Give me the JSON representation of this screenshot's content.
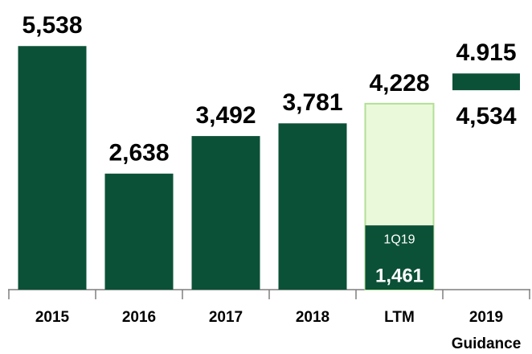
{
  "chart_data": {
    "type": "bar",
    "categories": [
      "2015",
      "2016",
      "2017",
      "2018",
      "LTM",
      "2019 Guidance"
    ],
    "values": [
      5538,
      2638,
      3492,
      3781,
      4228,
      null
    ],
    "value_labels": [
      "5,538",
      "2,638",
      "3,492",
      "3,781",
      "4,228",
      null
    ],
    "colors": [
      "#0b5137",
      "#0b5137",
      "#0b5137",
      "#0b5137",
      "#eaf9da",
      "#0b5137"
    ],
    "outline_colors": [
      null,
      null,
      null,
      null,
      "#b3df96",
      null
    ],
    "inner_values": [
      null,
      null,
      null,
      null,
      1461,
      null
    ],
    "inner_value_labels": [
      null,
      null,
      null,
      null,
      "1,461",
      null
    ],
    "inner_labels": [
      null,
      null,
      null,
      null,
      "1Q19",
      null
    ],
    "inner_color": "#0b5137",
    "range_low": [
      null,
      null,
      null,
      null,
      null,
      4534
    ],
    "range_high": [
      null,
      null,
      null,
      null,
      null,
      4915
    ],
    "range_low_labels": [
      null,
      null,
      null,
      null,
      null,
      "4,534"
    ],
    "range_high_labels": [
      null,
      null,
      null,
      null,
      null,
      "4.915"
    ],
    "ylim": [
      0,
      6000
    ]
  }
}
